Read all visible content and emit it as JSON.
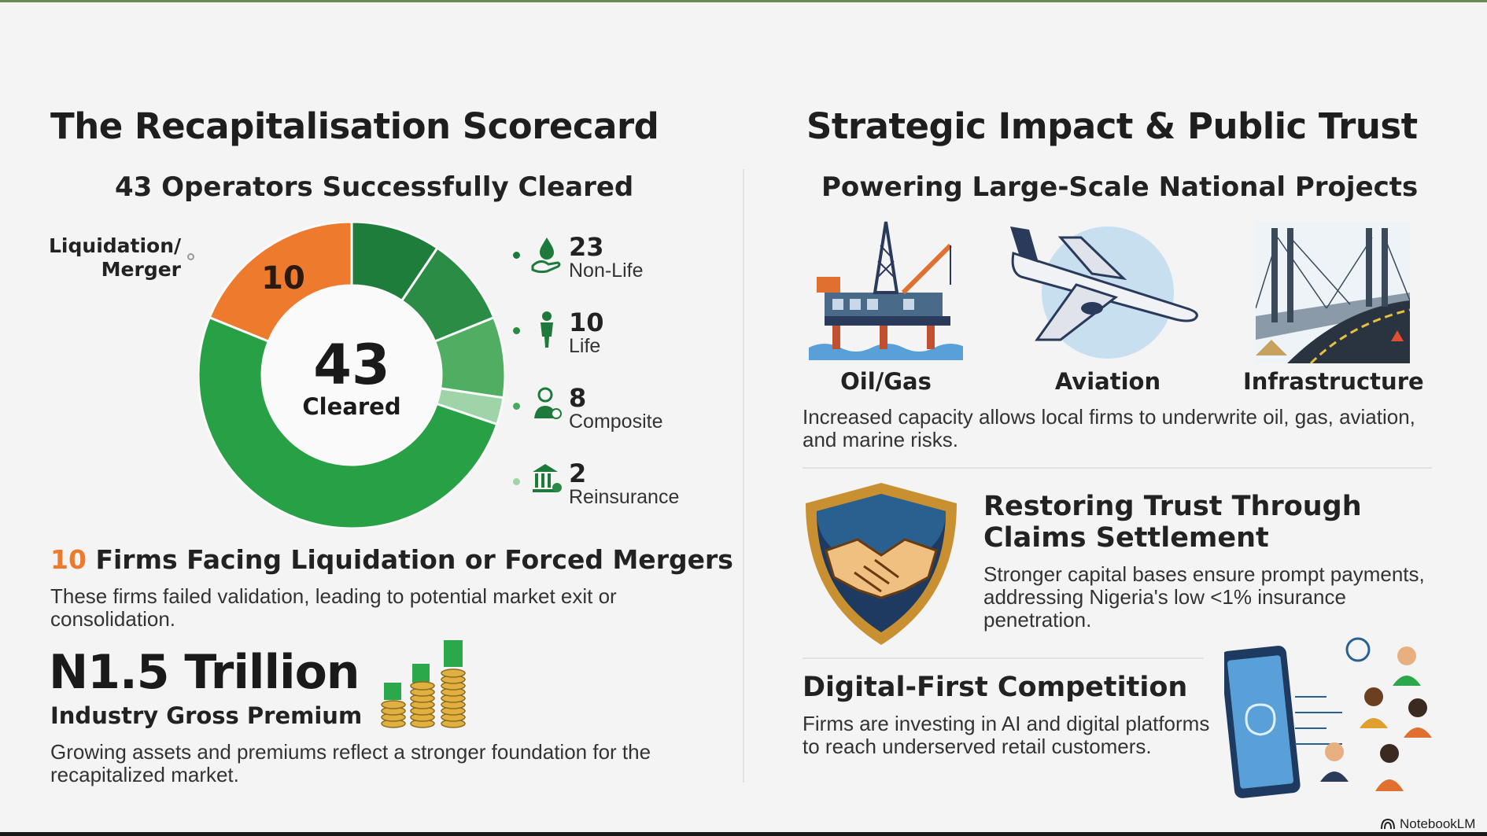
{
  "left": {
    "title": "The Recapitalisation Scorecard",
    "subtitle": "43 Operators Successfully Cleared",
    "liquidation_label": "Liquidation/\nMerger",
    "donut": {
      "center_value": "43",
      "center_label": "Cleared",
      "liquidation_value": "10"
    },
    "legend": [
      {
        "value": "23",
        "label": "Non-Life",
        "icon": "hand-drop-icon",
        "color": "#1e7a3a"
      },
      {
        "value": "10",
        "label": "Life",
        "icon": "person-icon",
        "color": "#2a8a44"
      },
      {
        "value": "8",
        "label": "Composite",
        "icon": "businessman-icon",
        "color": "#4aa85e"
      },
      {
        "value": "2",
        "label": "Reinsurance",
        "icon": "bank-icon",
        "color": "#9fd3a8"
      }
    ],
    "liquidation_heading_num": "10",
    "liquidation_heading": "Firms Facing Liquidation or Forced Mergers",
    "liquidation_body": "These firms failed validation, leading to potential market exit or consolidation.",
    "premium_value": "N1.5 Trillion",
    "premium_label": "Industry Gross Premium",
    "premium_body": "Growing assets and premiums reflect a stronger foundation for the recapitalized market."
  },
  "right": {
    "title": "Strategic Impact & Public Trust",
    "subtitle": "Powering Large-Scale National Projects",
    "projects": [
      {
        "label": "Oil/Gas",
        "icon": "oil-rig-icon"
      },
      {
        "label": "Aviation",
        "icon": "airplane-icon"
      },
      {
        "label": "Infrastructure",
        "icon": "bridge-icon"
      }
    ],
    "projects_body": "Increased capacity allows local firms to underwrite oil, gas, aviation, and marine risks.",
    "trust_heading": "Restoring Trust Through Claims Settlement",
    "trust_body": "Stronger capital bases ensure prompt payments, addressing Nigeria's low <1% insurance penetration.",
    "digital_heading": "Digital-First Competition",
    "digital_body": "Firms are investing in AI and digital platforms to reach underserved retail customers."
  },
  "badge": {
    "label": "NotebookLM",
    "icon": "notebooklm-icon"
  },
  "colors": {
    "accent_orange": "#ee7a2e",
    "green_dark": "#1e7a3a",
    "green_mid": "#2a8a44",
    "green_light": "#4aa85e",
    "green_pale": "#9fd3a8",
    "green_main": "#28a045"
  },
  "chart_data": {
    "type": "pie",
    "title": "",
    "categories": [
      "Liquidation/Merger",
      "Non-Life",
      "Life",
      "Composite",
      "Reinsurance"
    ],
    "values": [
      10,
      23,
      10,
      8,
      2
    ],
    "center_text": "43 Cleared"
  }
}
